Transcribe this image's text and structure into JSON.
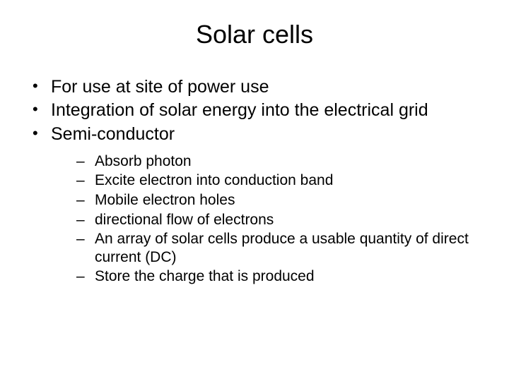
{
  "title": "Solar cells",
  "bullets": {
    "b0": "For use at site of power use",
    "b1": "Integration of solar energy into the electrical grid",
    "b2": "Semi-conductor"
  },
  "sub": {
    "s0": "Absorb photon",
    "s1": "Excite electron into conduction band",
    "s2": "Mobile electron holes",
    "s3": "directional flow of electrons",
    "s4": "An array of solar cells produce a usable quantity of direct current (DC)",
    "s5": "Store the charge that is produced"
  },
  "style": {
    "background_color": "#ffffff",
    "text_color": "#000000",
    "font_family": "Arial",
    "title_fontsize": 36,
    "level1_fontsize": 25,
    "level2_fontsize": 21,
    "level1_marker": "•",
    "level2_marker": "–"
  }
}
